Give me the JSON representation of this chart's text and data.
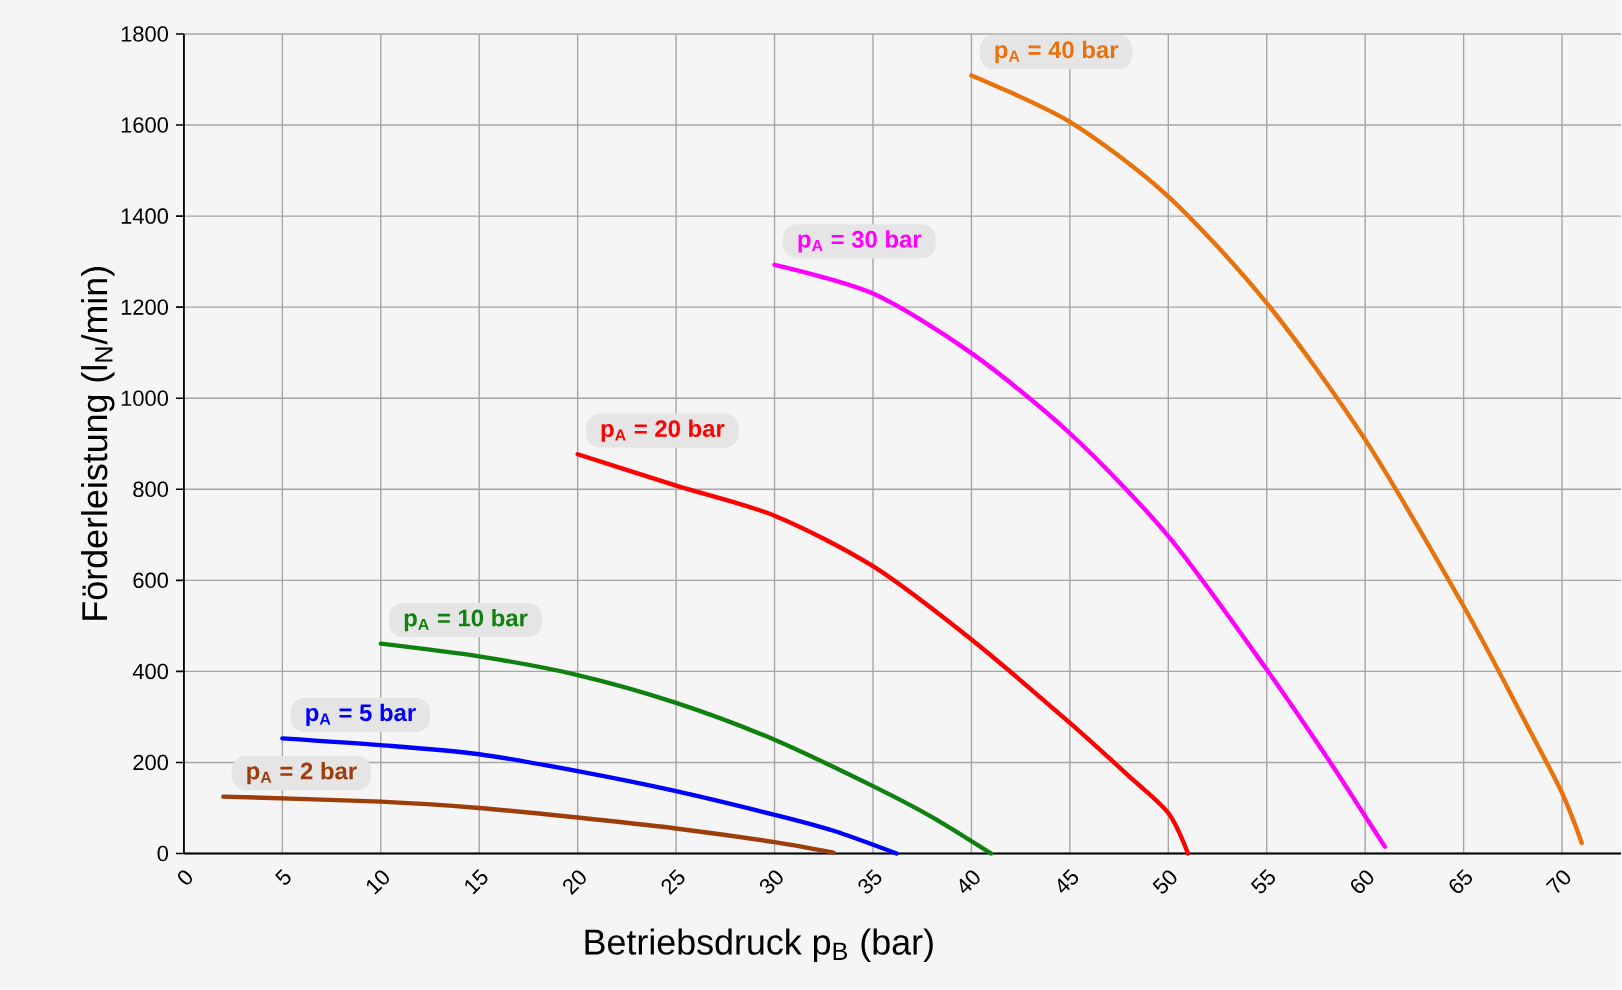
{
  "chart_data": {
    "type": "line",
    "xlabel": "Betriebsdruck p$_{B}$ (bar)",
    "ylabel": "Förderleistung (l$_{N}$/min)",
    "xlim": [
      0,
      73
    ],
    "ylim": [
      0,
      1800
    ],
    "xticks": [
      0,
      5,
      10,
      15,
      20,
      25,
      30,
      35,
      40,
      45,
      50,
      55,
      60,
      65,
      70
    ],
    "yticks": [
      0,
      200,
      400,
      600,
      800,
      1000,
      1200,
      1400,
      1600,
      1800
    ],
    "grid": true,
    "series": [
      {
        "name": "p$_{A}$ = 2 bar",
        "color": "#9c3d0a",
        "x": [
          2,
          10,
          15,
          20,
          25,
          30,
          33
        ],
        "values": [
          125,
          114,
          100,
          79,
          55,
          25,
          2
        ]
      },
      {
        "name": "p$_{A}$ = 5 bar",
        "color": "#0000ff",
        "x": [
          5,
          10,
          15,
          20,
          25,
          30,
          33,
          36.2
        ],
        "values": [
          253,
          238,
          218,
          181,
          137,
          85,
          50,
          0
        ]
      },
      {
        "name": "p$_{A}$ = 10 bar",
        "color": "#108010",
        "x": [
          10,
          15,
          20,
          25,
          30,
          35,
          38,
          41
        ],
        "values": [
          461,
          433,
          392,
          331,
          250,
          148,
          80,
          0
        ]
      },
      {
        "name": "p$_{A}$ = 20 bar",
        "color": "#ff0000",
        "x": [
          20,
          25,
          30,
          35,
          40,
          45,
          48,
          50,
          51
        ],
        "values": [
          877,
          808,
          742,
          631,
          470,
          287,
          170,
          89,
          0
        ]
      },
      {
        "name": "p$_{A}$ = 30 bar",
        "color": "#ff00ff",
        "x": [
          30,
          35,
          40,
          45,
          50,
          55,
          58,
          60,
          61
        ],
        "values": [
          1293,
          1230,
          1099,
          923,
          697,
          404,
          215,
          82,
          15
        ]
      },
      {
        "name": "p$_{A}$ = 40 bar",
        "color": "#e8720c",
        "x": [
          40,
          45,
          50,
          55,
          60,
          65,
          68,
          70,
          71
        ],
        "values": [
          1709,
          1607,
          1443,
          1209,
          909,
          543,
          300,
          133,
          23
        ]
      }
    ]
  }
}
